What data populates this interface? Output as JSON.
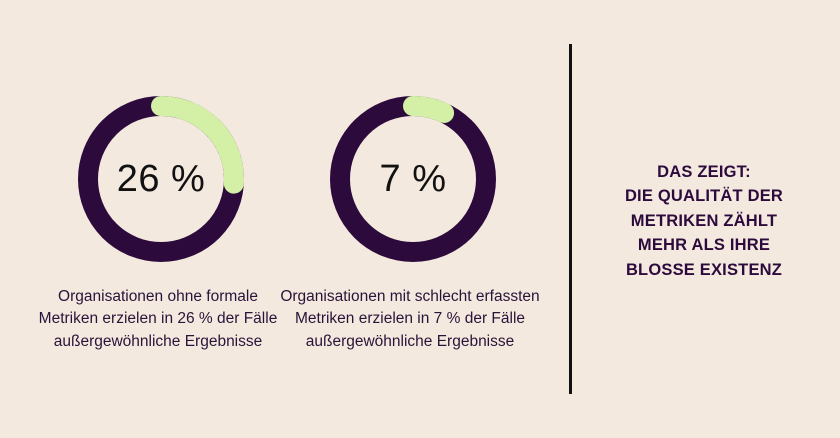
{
  "chart_data": {
    "type": "pie",
    "charts": [
      {
        "value": 26,
        "label": "26 %",
        "caption": "Organisationen ohne formale Metriken erzielen in 26 % der Fälle außergewöhnliche Ergebnisse"
      },
      {
        "value": 7,
        "label": "7 %",
        "caption": "Organisationen mit schlecht erfassten Metriken erzielen in 7 % der Fälle außergewöhnliche Ergebnisse"
      }
    ]
  },
  "colors": {
    "track": "#2d0a3c",
    "highlight": "#d4f0a6",
    "background": "#f3e9df"
  },
  "conclusion": {
    "lines": [
      "DAS ZEIGT:",
      "DIE QUALITÄT DER",
      "METRIKEN ZÄHLT",
      "MEHR ALS IHRE",
      "BLOSSE EXISTENZ"
    ]
  }
}
